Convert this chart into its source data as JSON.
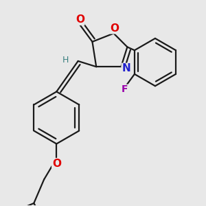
{
  "bg_color": "#e8e8e8",
  "bond_color": "#1a1a1a",
  "atom_colors": {
    "O": "#e00000",
    "N": "#2020cc",
    "F": "#9900aa",
    "H": "#3a8080",
    "C": "#1a1a1a"
  },
  "bond_width": 1.6,
  "font_size_atom": 10,
  "font_size_H": 9
}
